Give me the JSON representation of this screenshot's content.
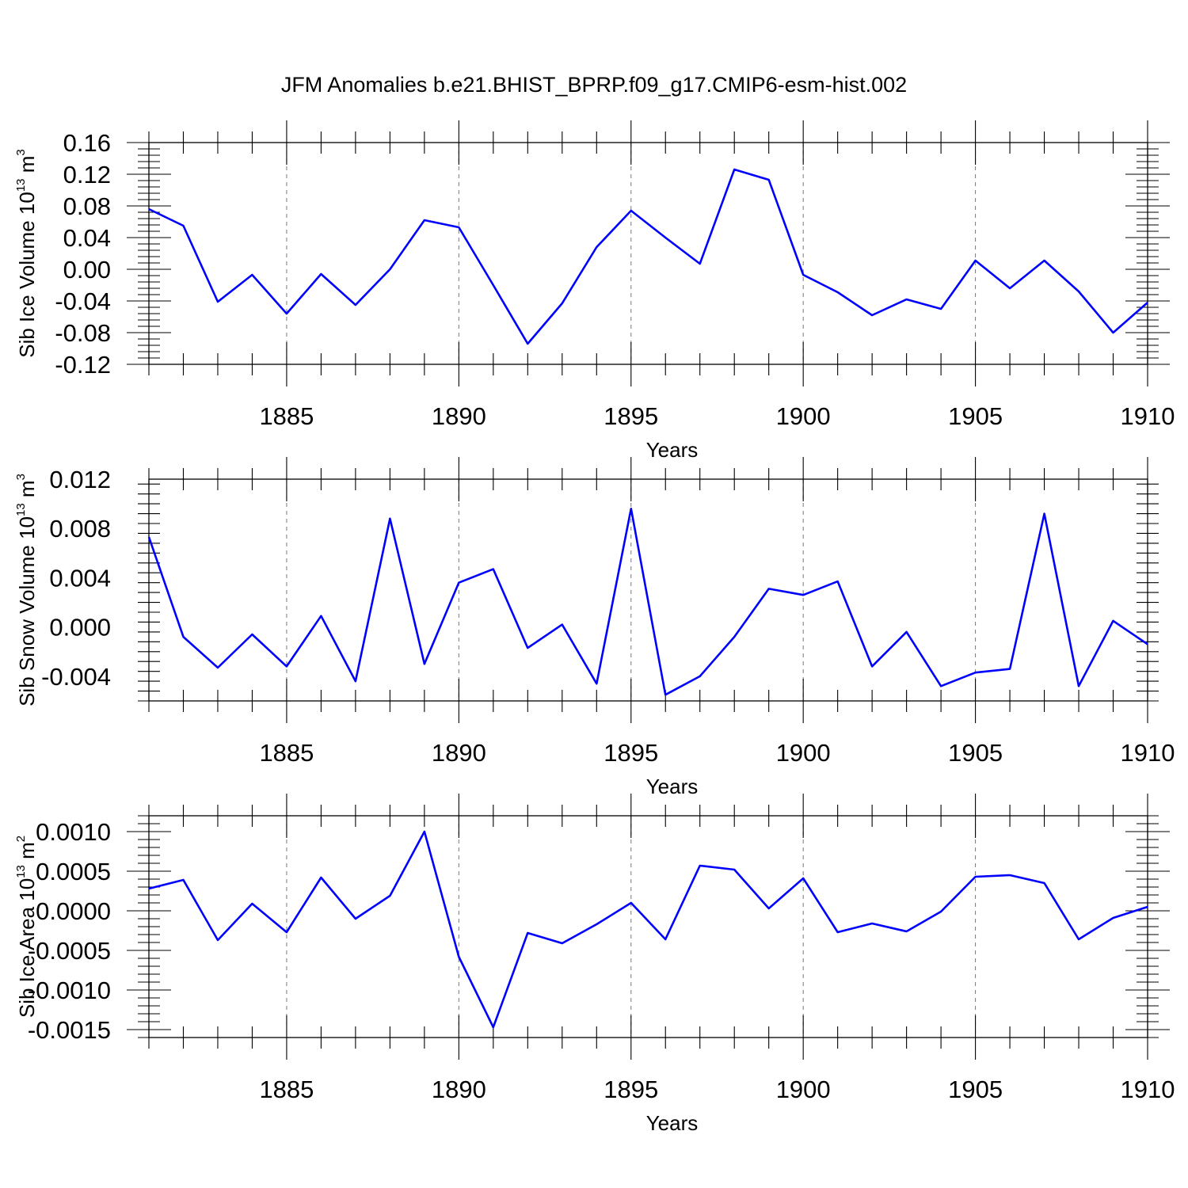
{
  "title": "JFM Anomalies b.e21.BHIST_BPRP.f09_g17.CMIP6-esm-hist.002",
  "chart_data": [
    {
      "type": "line",
      "xlabel": "Years",
      "ylabel": "Sib Ice Volume 10",
      "ylabel_exp": "13",
      "ylabel_unit": " m",
      "ylabel_unit_exp": "3",
      "xlim": [
        1881,
        1910
      ],
      "ylim": [
        -0.12,
        0.16
      ],
      "x_ticks": [
        1885,
        1890,
        1895,
        1900,
        1905,
        1910
      ],
      "x_tick_labels": [
        "1885",
        "1890",
        "1895",
        "1900",
        "1905",
        "1910"
      ],
      "y_ticks": [
        -0.12,
        -0.08,
        -0.04,
        0.0,
        0.04,
        0.08,
        0.12,
        0.16
      ],
      "y_tick_labels": [
        "-0.12",
        "-0.08",
        "-0.04",
        "0.00",
        "0.04",
        "0.08",
        "0.12",
        "0.16"
      ],
      "grid": "vertical dashed at major x ticks",
      "color": "#0000ff",
      "x": [
        1881,
        1882,
        1883,
        1884,
        1885,
        1886,
        1887,
        1888,
        1889,
        1890,
        1891,
        1892,
        1893,
        1894,
        1895,
        1896,
        1897,
        1898,
        1899,
        1900,
        1901,
        1902,
        1903,
        1904,
        1905,
        1906,
        1907,
        1908,
        1909,
        1910
      ],
      "values": [
        0.076,
        0.055,
        -0.041,
        -0.007,
        -0.056,
        -0.006,
        -0.045,
        0.0,
        0.062,
        0.053,
        -0.02,
        -0.094,
        -0.043,
        0.028,
        0.074,
        0.04,
        0.007,
        0.126,
        0.113,
        -0.007,
        -0.029,
        -0.058,
        -0.038,
        -0.05,
        0.011,
        -0.024,
        0.011,
        -0.028,
        -0.08,
        -0.042
      ]
    },
    {
      "type": "line",
      "xlabel": "Years",
      "ylabel": "Sib Snow Volume 10",
      "ylabel_exp": "13",
      "ylabel_unit": " m",
      "ylabel_unit_exp": "3",
      "xlim": [
        1881,
        1910
      ],
      "ylim": [
        -0.006,
        0.012
      ],
      "x_ticks": [
        1885,
        1890,
        1895,
        1900,
        1905,
        1910
      ],
      "x_tick_labels": [
        "1885",
        "1890",
        "1895",
        "1900",
        "1905",
        "1910"
      ],
      "y_ticks": [
        -0.004,
        0.0,
        0.004,
        0.008,
        0.012
      ],
      "y_tick_labels": [
        "-0.004",
        "0.000",
        "0.004",
        "0.008",
        "0.012"
      ],
      "grid": "vertical dashed at major x ticks",
      "color": "#0000ff",
      "x": [
        1881,
        1882,
        1883,
        1884,
        1885,
        1886,
        1887,
        1888,
        1889,
        1890,
        1891,
        1892,
        1893,
        1894,
        1895,
        1896,
        1897,
        1898,
        1899,
        1900,
        1901,
        1902,
        1903,
        1904,
        1905,
        1906,
        1907,
        1908,
        1909,
        1910
      ],
      "values": [
        0.0073,
        -0.0008,
        -0.0033,
        -0.0006,
        -0.0032,
        0.0009,
        -0.0044,
        0.0088,
        -0.003,
        0.0036,
        0.0047,
        -0.0017,
        0.0002,
        -0.0046,
        0.0096,
        -0.0055,
        -0.004,
        -0.0008,
        0.0031,
        0.0026,
        0.0037,
        -0.0032,
        -0.0004,
        -0.0048,
        -0.0037,
        -0.0034,
        0.0092,
        -0.0048,
        0.0005,
        -0.0014
      ]
    },
    {
      "type": "line",
      "xlabel": "Years",
      "ylabel": "Sib Ice Area 10",
      "ylabel_exp": "13",
      "ylabel_unit": " m",
      "ylabel_unit_exp": "2",
      "xlim": [
        1881,
        1910
      ],
      "ylim": [
        -0.0016,
        0.0012
      ],
      "x_ticks": [
        1885,
        1890,
        1895,
        1900,
        1905,
        1910
      ],
      "x_tick_labels": [
        "1885",
        "1890",
        "1895",
        "1900",
        "1905",
        "1910"
      ],
      "y_ticks": [
        -0.0015,
        -0.001,
        -0.0005,
        0.0,
        0.0005,
        0.001
      ],
      "y_tick_labels": [
        "-0.0015",
        "-0.0010",
        "-0.0005",
        "0.0000",
        "0.0005",
        "0.0010"
      ],
      "grid": "vertical dashed at major x ticks",
      "color": "#0000ff",
      "x": [
        1881,
        1882,
        1883,
        1884,
        1885,
        1886,
        1887,
        1888,
        1889,
        1890,
        1891,
        1892,
        1893,
        1894,
        1895,
        1896,
        1897,
        1898,
        1899,
        1900,
        1901,
        1902,
        1903,
        1904,
        1905,
        1906,
        1907,
        1908,
        1909,
        1910
      ],
      "values": [
        0.00028,
        0.00039,
        -0.00037,
        9e-05,
        -0.00027,
        0.00042,
        -0.0001,
        0.00019,
        0.001,
        -0.00058,
        -0.00147,
        -0.00028,
        -0.00041,
        -0.00017,
        0.0001,
        -0.00036,
        0.00057,
        0.00052,
        3e-05,
        0.00041,
        -0.00027,
        -0.00016,
        -0.00026,
        -1e-05,
        0.00043,
        0.00045,
        0.00035,
        -0.00036,
        -9e-05,
        5e-05
      ]
    }
  ]
}
